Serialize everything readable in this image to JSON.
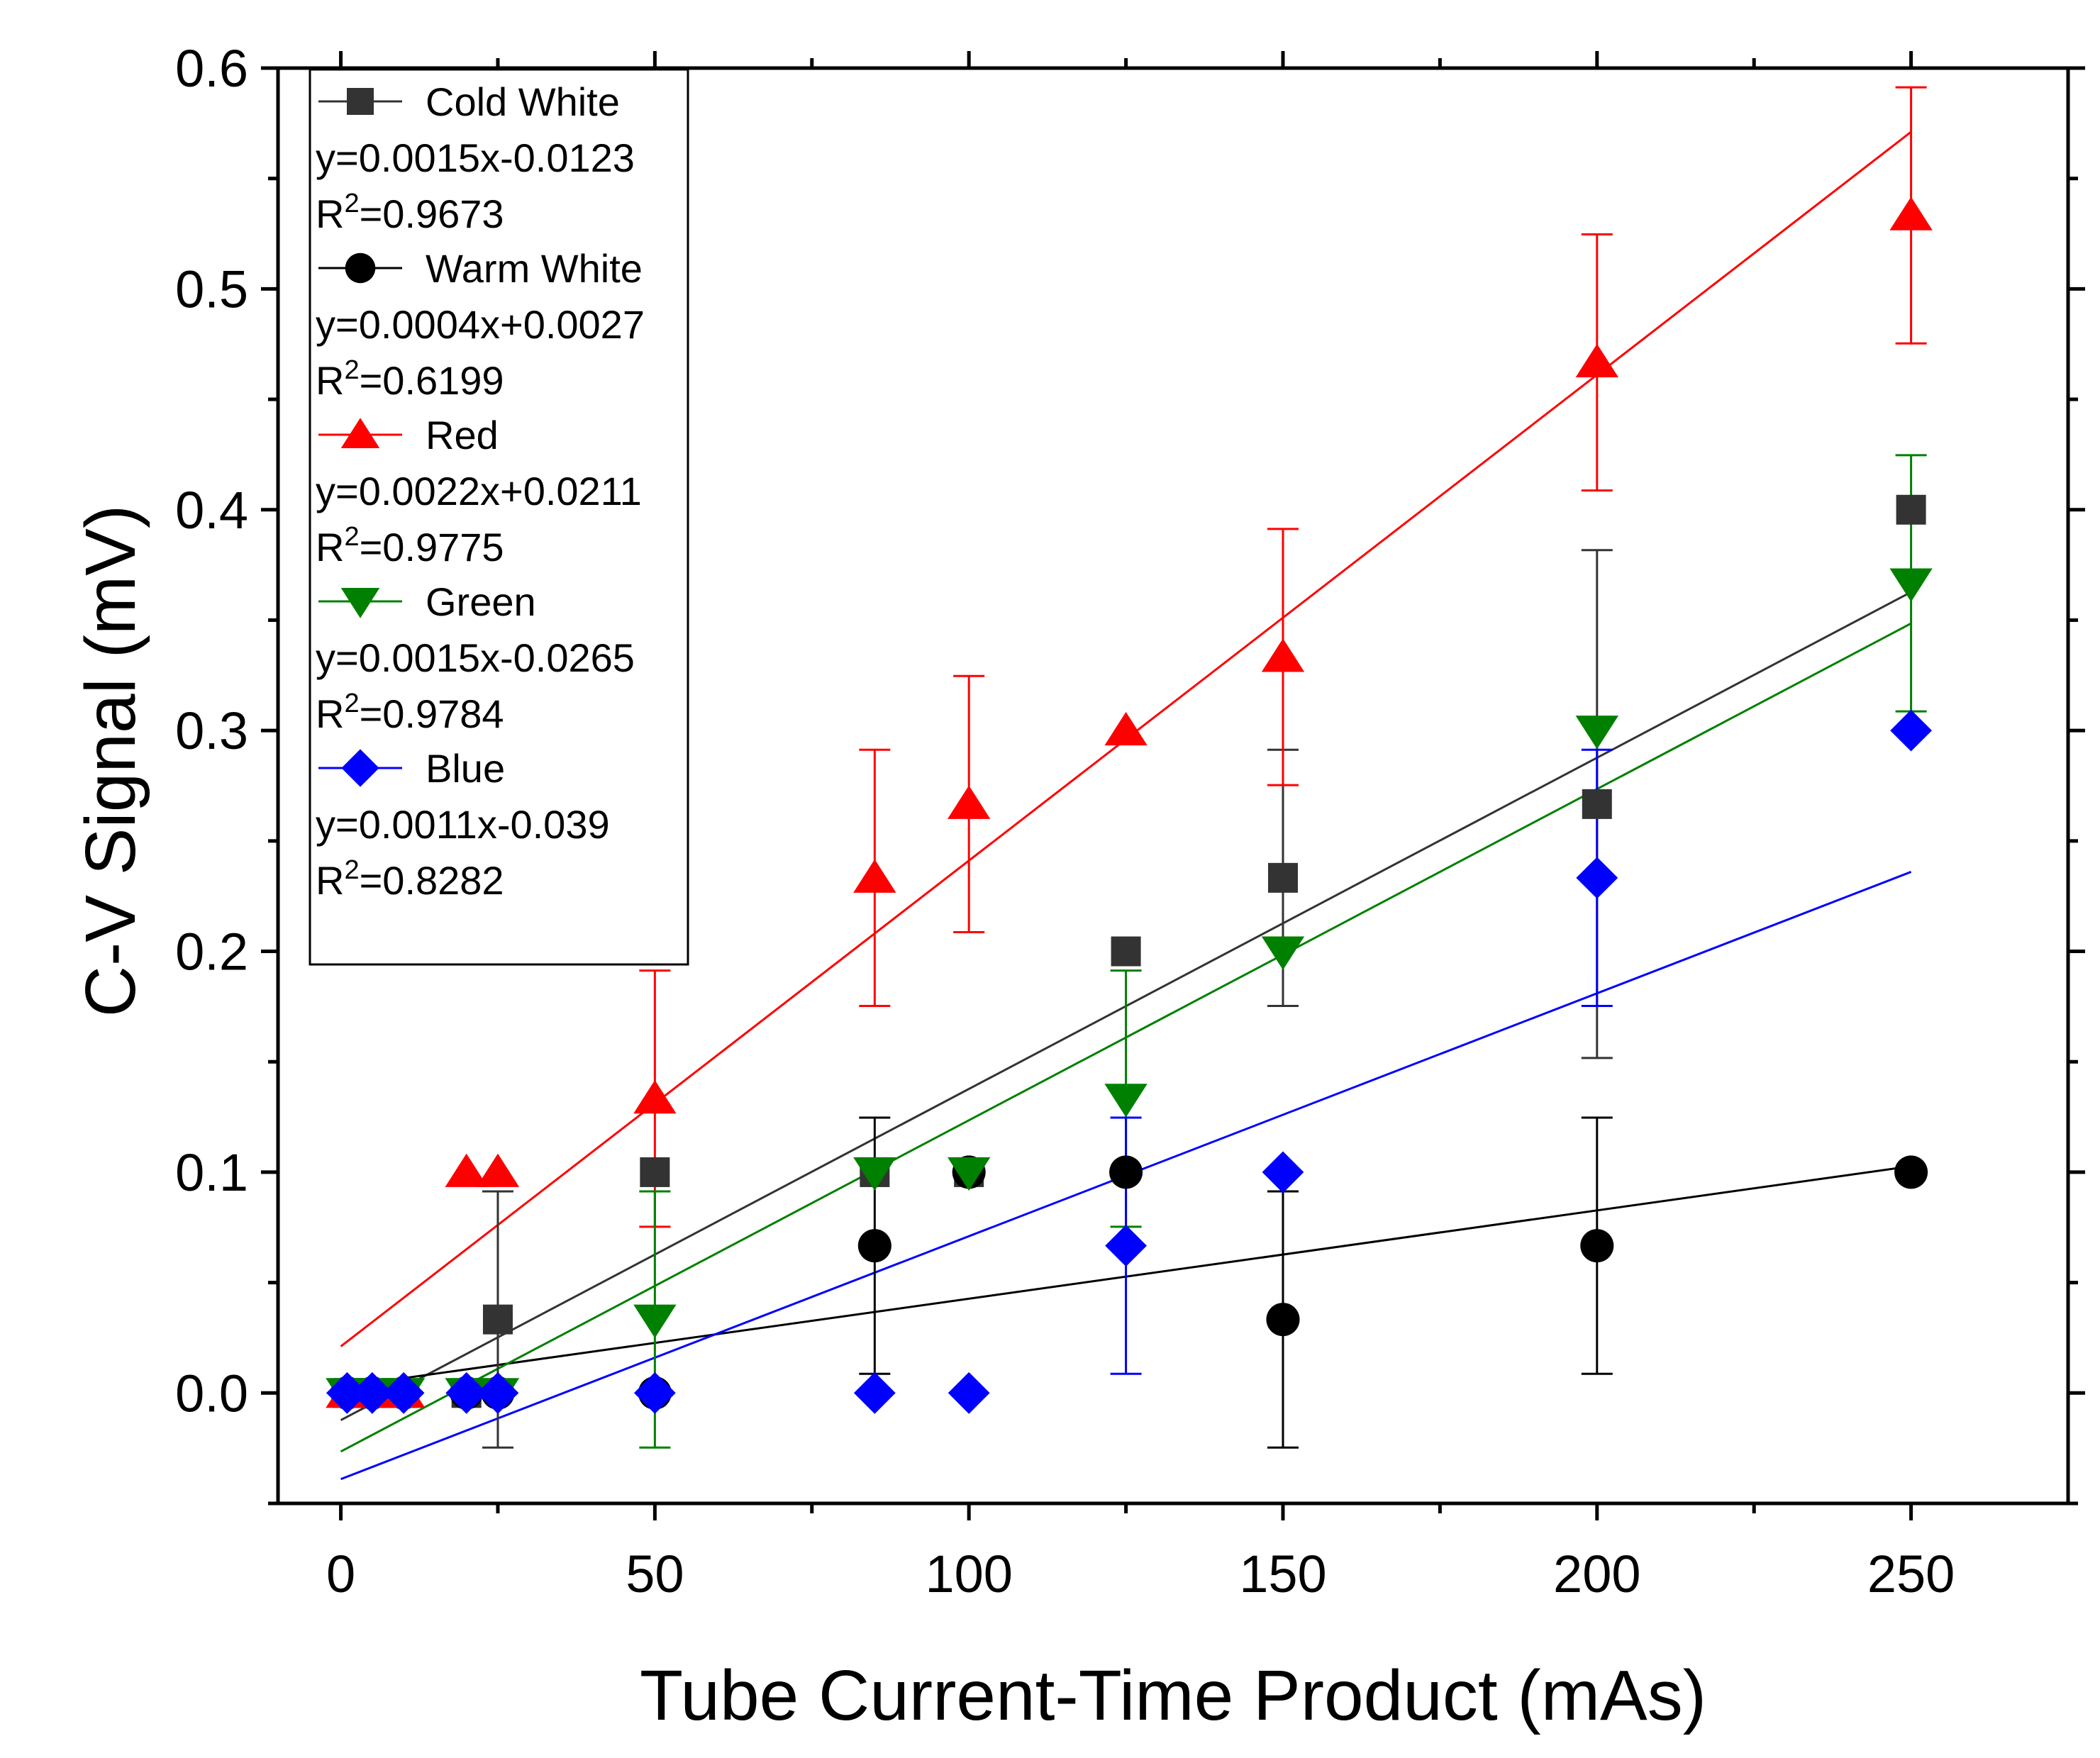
{
  "chart_data": {
    "type": "scatter",
    "title": "",
    "xlabel": "Tube Current-Time Product (mAs)",
    "ylabel": "C-V Signal (mV)",
    "xlim": [
      -10,
      275
    ],
    "ylim": [
      -0.05,
      0.6
    ],
    "xticks": [
      0,
      50,
      100,
      150,
      200,
      250
    ],
    "xtick_labels": [
      "0",
      "50",
      "100",
      "150",
      "200",
      "250"
    ],
    "yticks": [
      0.0,
      0.1,
      0.2,
      0.3,
      0.4,
      0.5,
      0.6
    ],
    "ytick_labels": [
      "0.0",
      "0.1",
      "0.2",
      "0.3",
      "0.4",
      "0.5",
      "0.6"
    ],
    "grid": false,
    "legend_position": "top-left",
    "series": [
      {
        "name": "Cold White",
        "marker": "square",
        "color": "#333333",
        "fit_color": "#333333",
        "equation": "y=0.0015x-0.0123",
        "r2_prefix": "R",
        "r2_exp": "2",
        "r2_value": "=0.9673",
        "slope": 0.0015,
        "intercept": -0.0123,
        "fit_x": [
          0,
          250
        ],
        "points": [
          {
            "x": 1,
            "y": 0
          },
          {
            "x": 5,
            "y": 0
          },
          {
            "x": 10,
            "y": 0
          },
          {
            "x": 20,
            "y": 0
          },
          {
            "x": 25,
            "y": 0.0333,
            "err": 0.058
          },
          {
            "x": 50,
            "y": 0.1
          },
          {
            "x": 85,
            "y": 0.1
          },
          {
            "x": 100,
            "y": 0.1
          },
          {
            "x": 125,
            "y": 0.2
          },
          {
            "x": 150,
            "y": 0.2333,
            "err": 0.058
          },
          {
            "x": 200,
            "y": 0.2667,
            "err": 0.115
          },
          {
            "x": 250,
            "y": 0.4
          }
        ]
      },
      {
        "name": "Warm White",
        "marker": "circle",
        "color": "#000000",
        "fit_color": "#000000",
        "equation": "y=0.0004x+0.0027",
        "r2_prefix": "R",
        "r2_exp": "2",
        "r2_value": "=0.6199",
        "slope": 0.0004,
        "intercept": 0.0027,
        "fit_x": [
          0,
          250
        ],
        "points": [
          {
            "x": 1,
            "y": 0
          },
          {
            "x": 5,
            "y": 0
          },
          {
            "x": 10,
            "y": 0
          },
          {
            "x": 20,
            "y": 0
          },
          {
            "x": 25,
            "y": 0
          },
          {
            "x": 50,
            "y": 0
          },
          {
            "x": 85,
            "y": 0.0667,
            "err": 0.058
          },
          {
            "x": 100,
            "y": 0.1
          },
          {
            "x": 125,
            "y": 0.1
          },
          {
            "x": 150,
            "y": 0.0333,
            "err": 0.058
          },
          {
            "x": 200,
            "y": 0.0667,
            "err": 0.058
          },
          {
            "x": 250,
            "y": 0.1
          }
        ]
      },
      {
        "name": "Red",
        "marker": "triangle-up",
        "color": "#ff0000",
        "fit_color": "#ff0000",
        "equation": "y=0.0022x+0.0211",
        "r2_prefix": "R",
        "r2_exp": "2",
        "r2_value": "=0.9775",
        "slope": 0.0022,
        "intercept": 0.0211,
        "fit_x": [
          0,
          250
        ],
        "points": [
          {
            "x": 1,
            "y": 0
          },
          {
            "x": 5,
            "y": 0
          },
          {
            "x": 10,
            "y": 0
          },
          {
            "x": 20,
            "y": 0.1
          },
          {
            "x": 25,
            "y": 0.1
          },
          {
            "x": 50,
            "y": 0.1333,
            "err": 0.058
          },
          {
            "x": 85,
            "y": 0.2333,
            "err": 0.058
          },
          {
            "x": 100,
            "y": 0.2667,
            "err": 0.058
          },
          {
            "x": 125,
            "y": 0.3
          },
          {
            "x": 150,
            "y": 0.3333,
            "err": 0.058
          },
          {
            "x": 200,
            "y": 0.4667,
            "err": 0.058
          },
          {
            "x": 250,
            "y": 0.5333,
            "err": 0.058
          }
        ]
      },
      {
        "name": "Green",
        "marker": "triangle-down",
        "color": "#008000",
        "fit_color": "#008000",
        "equation": "y=0.0015x-0.0265",
        "r2_prefix": "R",
        "r2_exp": "2",
        "r2_value": "=0.9784",
        "slope": 0.0015,
        "intercept": -0.0265,
        "fit_x": [
          0,
          250
        ],
        "points": [
          {
            "x": 1,
            "y": 0
          },
          {
            "x": 5,
            "y": 0
          },
          {
            "x": 10,
            "y": 0
          },
          {
            "x": 20,
            "y": 0
          },
          {
            "x": 25,
            "y": 0
          },
          {
            "x": 50,
            "y": 0.0333,
            "err": 0.058
          },
          {
            "x": 85,
            "y": 0.1
          },
          {
            "x": 100,
            "y": 0.1
          },
          {
            "x": 125,
            "y": 0.1333,
            "err": 0.058
          },
          {
            "x": 150,
            "y": 0.2
          },
          {
            "x": 200,
            "y": 0.3
          },
          {
            "x": 250,
            "y": 0.3667,
            "err": 0.058
          }
        ]
      },
      {
        "name": "Blue",
        "marker": "diamond",
        "color": "#0000ff",
        "fit_color": "#0000ff",
        "equation": "y=0.0011x-0.039",
        "r2_prefix": "R",
        "r2_exp": "2",
        "r2_value": "=0.8282",
        "slope": 0.0011,
        "intercept": -0.039,
        "fit_x": [
          0,
          250
        ],
        "points": [
          {
            "x": 1,
            "y": 0
          },
          {
            "x": 5,
            "y": 0
          },
          {
            "x": 10,
            "y": 0
          },
          {
            "x": 20,
            "y": 0
          },
          {
            "x": 25,
            "y": 0
          },
          {
            "x": 50,
            "y": 0
          },
          {
            "x": 85,
            "y": 0
          },
          {
            "x": 100,
            "y": 0
          },
          {
            "x": 125,
            "y": 0.0667,
            "err": 0.058
          },
          {
            "x": 150,
            "y": 0.1
          },
          {
            "x": 200,
            "y": 0.2333,
            "err": 0.058
          },
          {
            "x": 250,
            "y": 0.3
          }
        ]
      }
    ]
  }
}
